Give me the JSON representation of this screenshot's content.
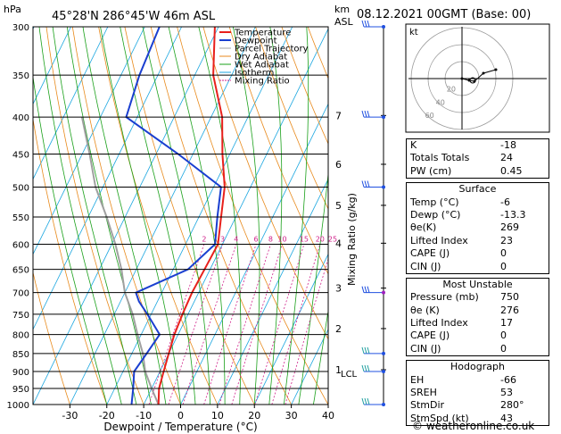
{
  "header": {
    "hpa_label": "hPa",
    "location": "45°28'N  286°45'W  46m  ASL",
    "km_label": "km",
    "asl_label": "ASL",
    "datetime": "08.12.2021  00GMT  (Base: 00)"
  },
  "chart_data": {
    "type": "line",
    "title": "45°28'N  286°45'W  46m  ASL",
    "xlabel": "Dewpoint / Temperature (°C)",
    "ylabel": "hPa",
    "right_label": "Mixing Ratio (g/kg)",
    "xlim": [
      -40,
      40
    ],
    "ylim": [
      1000,
      300
    ],
    "x_ticks": [
      -30,
      -20,
      -10,
      0,
      10,
      20,
      30,
      40
    ],
    "pressure_levels": [
      300,
      350,
      400,
      450,
      500,
      550,
      600,
      650,
      700,
      750,
      800,
      850,
      900,
      950,
      1000
    ],
    "km_ticks": [
      {
        "km": "7",
        "p": 398
      },
      {
        "km": "6",
        "p": 465
      },
      {
        "km": "5",
        "p": 530
      },
      {
        "km": "4",
        "p": 598
      },
      {
        "km": "3",
        "p": 690
      },
      {
        "km": "2",
        "p": 785
      },
      {
        "km": "1",
        "p": 895
      }
    ],
    "lcl_label": "LCL",
    "lcl_p": 905,
    "mixing_ratio_labels": [
      "2",
      "3",
      "4",
      "6",
      "8",
      "10",
      "15",
      "20",
      "25"
    ],
    "legend": [
      "Temperature",
      "Dewpoint",
      "Parcel Trajectory",
      "Dry Adiabat",
      "Wet Adiabat",
      "Isotherm",
      "Mixing Ratio"
    ],
    "colors": {
      "temperature": "#e8201c",
      "dewpoint": "#1a3fd0",
      "parcel": "#a0a0a0",
      "dry_adiabat": "#e88a1c",
      "wet_adiabat": "#1aa01a",
      "isotherm": "#1aa6e0",
      "mixing_ratio": "#d0208a",
      "wind": "#2050e0"
    },
    "series": [
      {
        "name": "Temperature",
        "points": [
          [
            1000,
            -6
          ],
          [
            950,
            -8
          ],
          [
            900,
            -9
          ],
          [
            850,
            -10
          ],
          [
            800,
            -11
          ],
          [
            750,
            -11.5
          ],
          [
            700,
            -11.8
          ],
          [
            650,
            -11.5
          ],
          [
            600,
            -11.2
          ],
          [
            550,
            -14
          ],
          [
            500,
            -17
          ],
          [
            450,
            -22
          ],
          [
            400,
            -27
          ],
          [
            350,
            -35
          ],
          [
            300,
            -41
          ]
        ]
      },
      {
        "name": "Dewpoint",
        "points": [
          [
            1000,
            -13.3
          ],
          [
            950,
            -15
          ],
          [
            900,
            -17
          ],
          [
            850,
            -16
          ],
          [
            800,
            -15
          ],
          [
            750,
            -21
          ],
          [
            720,
            -25
          ],
          [
            700,
            -27
          ],
          [
            650,
            -16
          ],
          [
            600,
            -12
          ],
          [
            550,
            -15
          ],
          [
            500,
            -18
          ],
          [
            450,
            -34
          ],
          [
            400,
            -53
          ],
          [
            350,
            -55
          ],
          [
            300,
            -56
          ]
        ]
      },
      {
        "name": "Parcel Trajectory",
        "points": [
          [
            1000,
            -6
          ],
          [
            950,
            -10
          ],
          [
            900,
            -14
          ],
          [
            850,
            -17
          ],
          [
            800,
            -21
          ],
          [
            750,
            -25
          ],
          [
            700,
            -30
          ],
          [
            650,
            -34
          ],
          [
            600,
            -39
          ],
          [
            550,
            -45
          ],
          [
            500,
            -52
          ],
          [
            450,
            -58
          ],
          [
            400,
            -65
          ]
        ]
      }
    ],
    "wind_levels": [
      300,
      400,
      500,
      700,
      850,
      900,
      1000
    ]
  },
  "hodograph": {
    "kt_label": "kt",
    "ring_labels": [
      "20",
      "40",
      "60"
    ]
  },
  "indices": [
    {
      "label": "K",
      "value": "-18"
    },
    {
      "label": "Totals Totals",
      "value": "24"
    },
    {
      "label": "PW (cm)",
      "value": "0.45"
    }
  ],
  "surface": {
    "title": "Surface",
    "rows": [
      {
        "label": "Temp (°C)",
        "value": "-6"
      },
      {
        "label": "Dewp (°C)",
        "value": "-13.3"
      },
      {
        "label": "θe(K)",
        "value": "269"
      },
      {
        "label": "Lifted Index",
        "value": "23"
      },
      {
        "label": "CAPE (J)",
        "value": "0"
      },
      {
        "label": "CIN (J)",
        "value": "0"
      }
    ]
  },
  "most_unstable": {
    "title": "Most Unstable",
    "rows": [
      {
        "label": "Pressure (mb)",
        "value": "750"
      },
      {
        "label": "θe (K)",
        "value": "276"
      },
      {
        "label": "Lifted Index",
        "value": "17"
      },
      {
        "label": "CAPE (J)",
        "value": "0"
      },
      {
        "label": "CIN (J)",
        "value": "0"
      }
    ]
  },
  "hodograph_table": {
    "title": "Hodograph",
    "rows": [
      {
        "label": "EH",
        "value": "-66"
      },
      {
        "label": "SREH",
        "value": "53"
      },
      {
        "label": "StmDir",
        "value": "280°"
      },
      {
        "label": "StmSpd (kt)",
        "value": "43"
      }
    ]
  },
  "footer": "© weatheronline.co.uk"
}
